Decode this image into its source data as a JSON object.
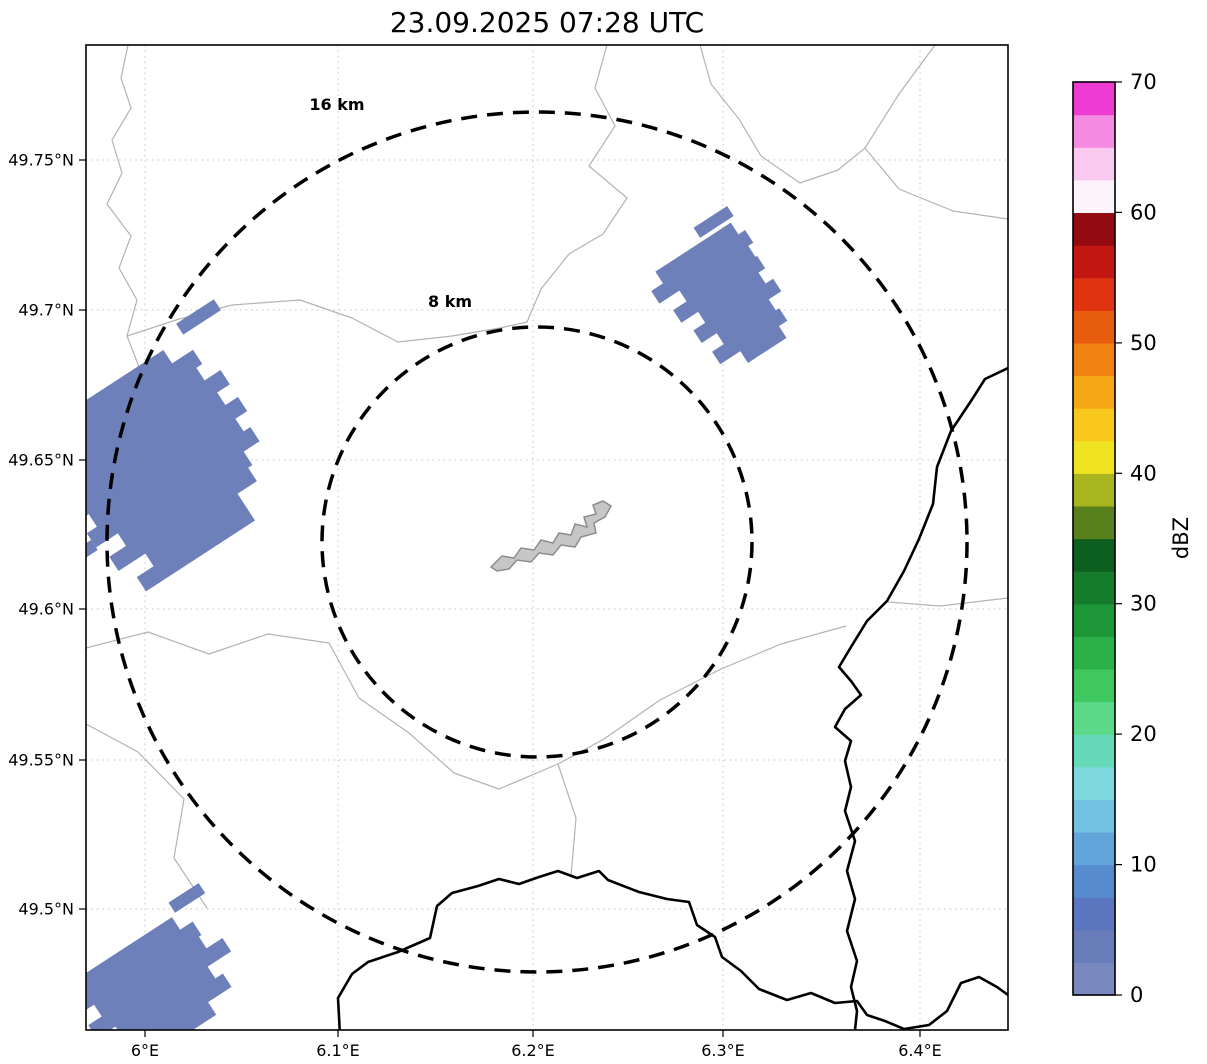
{
  "title": "23.09.2025 07:28 UTC",
  "map": {
    "rings": {
      "outer_label": "16 km",
      "inner_label": "8 km"
    },
    "x_ticks": [
      "6°E",
      "6.1°E",
      "6.2°E",
      "6.3°E",
      "6.4°E"
    ],
    "y_ticks": [
      "49.75°N",
      "49.7°N",
      "49.65°N",
      "49.6°N",
      "49.55°N",
      "49.5°N"
    ],
    "echoes": [
      {
        "name": "echo-west",
        "approx_dbz": "0-10"
      },
      {
        "name": "echo-northeast",
        "approx_dbz": "0-10"
      },
      {
        "name": "echo-southwest",
        "approx_dbz": "0-10"
      }
    ]
  },
  "colorbar": {
    "label": "dBZ",
    "min": 0,
    "max": 70,
    "ticks": [
      "70",
      "60",
      "50",
      "40",
      "30",
      "20",
      "10",
      "0"
    ],
    "segment_colors_bottom_to_top": [
      "#7988bf",
      "#6a7dbb",
      "#5a77c0",
      "#568ccd",
      "#62a5da",
      "#74c2e2",
      "#7fd8de",
      "#66d9b9",
      "#5cd988",
      "#3fc85f",
      "#2bb04a",
      "#1d9638",
      "#147c2b",
      "#0d5f1f",
      "#58801d",
      "#a8b51f",
      "#f0e322",
      "#f8c81d",
      "#f5a816",
      "#ef8211",
      "#e85c0e",
      "#df330f",
      "#c11612",
      "#930b10",
      "#fdf4fb",
      "#f9c9ef",
      "#f48ae2",
      "#ee3cd3"
    ]
  },
  "colors": {
    "echo": "#6e80b9",
    "airport_fill": "#c6c6c6",
    "airport_stroke": "#8c8c8c",
    "admin_line": "#b3b3b3",
    "country_line": "#000000",
    "grid_line": "#c4c4c4",
    "ring_line": "#000000",
    "background": "#ffffff"
  },
  "chart_data": {
    "type": "heatmap",
    "title": "23.09.2025 07:28 UTC",
    "colorbar_label": "dBZ",
    "colorbar_range": [
      0,
      70
    ],
    "range_rings_km": [
      8,
      16
    ],
    "x_axis_ticks": [
      "6°E",
      "6.1°E",
      "6.2°E",
      "6.3°E",
      "6.4°E"
    ],
    "y_axis_ticks": [
      "49.75°N",
      "49.7°N",
      "49.65°N",
      "49.6°N",
      "49.55°N",
      "49.5°N"
    ],
    "echo_regions": [
      {
        "location": "west edge near 6.0E 49.64N",
        "intensity_dbz": "0-10"
      },
      {
        "location": "northeast near 6.3E 49.7N",
        "intensity_dbz": "0-10"
      },
      {
        "location": "southwest corner near 6.0E 49.47N",
        "intensity_dbz": "0-10"
      }
    ]
  }
}
